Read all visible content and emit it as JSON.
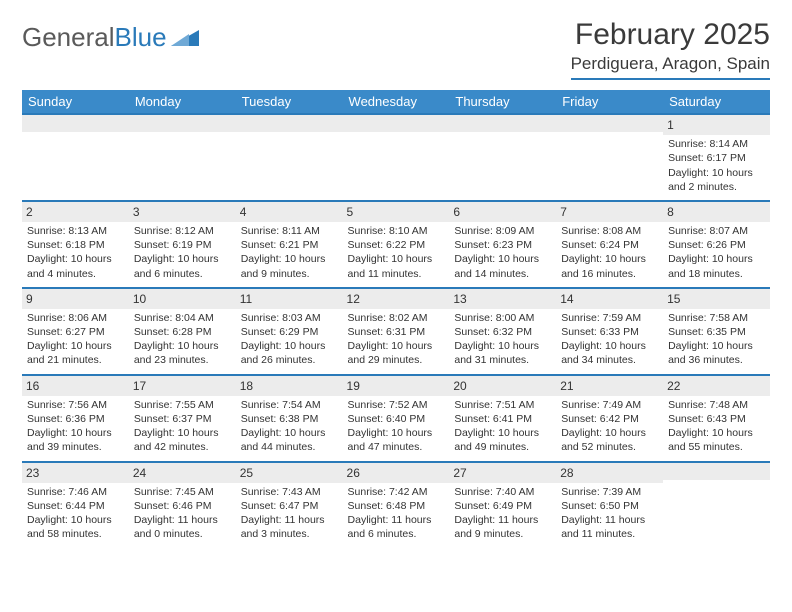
{
  "logo": {
    "general": "General",
    "blue": "Blue",
    "tri_color": "#2a7ab9"
  },
  "title": "February 2025",
  "location": "Perdiguera, Aragon, Spain",
  "header_bg": "#3a8ac9",
  "rule_color": "#2a7ab9",
  "daynum_bg": "#ececec",
  "text_color": "#333333",
  "background": "#ffffff",
  "font_family": "Arial, Helvetica, sans-serif",
  "days": [
    "Sunday",
    "Monday",
    "Tuesday",
    "Wednesday",
    "Thursday",
    "Friday",
    "Saturday"
  ],
  "weeks": [
    [
      {
        "n": "",
        "lines": []
      },
      {
        "n": "",
        "lines": []
      },
      {
        "n": "",
        "lines": []
      },
      {
        "n": "",
        "lines": []
      },
      {
        "n": "",
        "lines": []
      },
      {
        "n": "",
        "lines": []
      },
      {
        "n": "1",
        "lines": [
          "Sunrise: 8:14 AM",
          "Sunset: 6:17 PM",
          "Daylight: 10 hours and 2 minutes."
        ]
      }
    ],
    [
      {
        "n": "2",
        "lines": [
          "Sunrise: 8:13 AM",
          "Sunset: 6:18 PM",
          "Daylight: 10 hours and 4 minutes."
        ]
      },
      {
        "n": "3",
        "lines": [
          "Sunrise: 8:12 AM",
          "Sunset: 6:19 PM",
          "Daylight: 10 hours and 6 minutes."
        ]
      },
      {
        "n": "4",
        "lines": [
          "Sunrise: 8:11 AM",
          "Sunset: 6:21 PM",
          "Daylight: 10 hours and 9 minutes."
        ]
      },
      {
        "n": "5",
        "lines": [
          "Sunrise: 8:10 AM",
          "Sunset: 6:22 PM",
          "Daylight: 10 hours and 11 minutes."
        ]
      },
      {
        "n": "6",
        "lines": [
          "Sunrise: 8:09 AM",
          "Sunset: 6:23 PM",
          "Daylight: 10 hours and 14 minutes."
        ]
      },
      {
        "n": "7",
        "lines": [
          "Sunrise: 8:08 AM",
          "Sunset: 6:24 PM",
          "Daylight: 10 hours and 16 minutes."
        ]
      },
      {
        "n": "8",
        "lines": [
          "Sunrise: 8:07 AM",
          "Sunset: 6:26 PM",
          "Daylight: 10 hours and 18 minutes."
        ]
      }
    ],
    [
      {
        "n": "9",
        "lines": [
          "Sunrise: 8:06 AM",
          "Sunset: 6:27 PM",
          "Daylight: 10 hours and 21 minutes."
        ]
      },
      {
        "n": "10",
        "lines": [
          "Sunrise: 8:04 AM",
          "Sunset: 6:28 PM",
          "Daylight: 10 hours and 23 minutes."
        ]
      },
      {
        "n": "11",
        "lines": [
          "Sunrise: 8:03 AM",
          "Sunset: 6:29 PM",
          "Daylight: 10 hours and 26 minutes."
        ]
      },
      {
        "n": "12",
        "lines": [
          "Sunrise: 8:02 AM",
          "Sunset: 6:31 PM",
          "Daylight: 10 hours and 29 minutes."
        ]
      },
      {
        "n": "13",
        "lines": [
          "Sunrise: 8:00 AM",
          "Sunset: 6:32 PM",
          "Daylight: 10 hours and 31 minutes."
        ]
      },
      {
        "n": "14",
        "lines": [
          "Sunrise: 7:59 AM",
          "Sunset: 6:33 PM",
          "Daylight: 10 hours and 34 minutes."
        ]
      },
      {
        "n": "15",
        "lines": [
          "Sunrise: 7:58 AM",
          "Sunset: 6:35 PM",
          "Daylight: 10 hours and 36 minutes."
        ]
      }
    ],
    [
      {
        "n": "16",
        "lines": [
          "Sunrise: 7:56 AM",
          "Sunset: 6:36 PM",
          "Daylight: 10 hours and 39 minutes."
        ]
      },
      {
        "n": "17",
        "lines": [
          "Sunrise: 7:55 AM",
          "Sunset: 6:37 PM",
          "Daylight: 10 hours and 42 minutes."
        ]
      },
      {
        "n": "18",
        "lines": [
          "Sunrise: 7:54 AM",
          "Sunset: 6:38 PM",
          "Daylight: 10 hours and 44 minutes."
        ]
      },
      {
        "n": "19",
        "lines": [
          "Sunrise: 7:52 AM",
          "Sunset: 6:40 PM",
          "Daylight: 10 hours and 47 minutes."
        ]
      },
      {
        "n": "20",
        "lines": [
          "Sunrise: 7:51 AM",
          "Sunset: 6:41 PM",
          "Daylight: 10 hours and 49 minutes."
        ]
      },
      {
        "n": "21",
        "lines": [
          "Sunrise: 7:49 AM",
          "Sunset: 6:42 PM",
          "Daylight: 10 hours and 52 minutes."
        ]
      },
      {
        "n": "22",
        "lines": [
          "Sunrise: 7:48 AM",
          "Sunset: 6:43 PM",
          "Daylight: 10 hours and 55 minutes."
        ]
      }
    ],
    [
      {
        "n": "23",
        "lines": [
          "Sunrise: 7:46 AM",
          "Sunset: 6:44 PM",
          "Daylight: 10 hours and 58 minutes."
        ]
      },
      {
        "n": "24",
        "lines": [
          "Sunrise: 7:45 AM",
          "Sunset: 6:46 PM",
          "Daylight: 11 hours and 0 minutes."
        ]
      },
      {
        "n": "25",
        "lines": [
          "Sunrise: 7:43 AM",
          "Sunset: 6:47 PM",
          "Daylight: 11 hours and 3 minutes."
        ]
      },
      {
        "n": "26",
        "lines": [
          "Sunrise: 7:42 AM",
          "Sunset: 6:48 PM",
          "Daylight: 11 hours and 6 minutes."
        ]
      },
      {
        "n": "27",
        "lines": [
          "Sunrise: 7:40 AM",
          "Sunset: 6:49 PM",
          "Daylight: 11 hours and 9 minutes."
        ]
      },
      {
        "n": "28",
        "lines": [
          "Sunrise: 7:39 AM",
          "Sunset: 6:50 PM",
          "Daylight: 11 hours and 11 minutes."
        ]
      },
      {
        "n": "",
        "lines": []
      }
    ]
  ]
}
